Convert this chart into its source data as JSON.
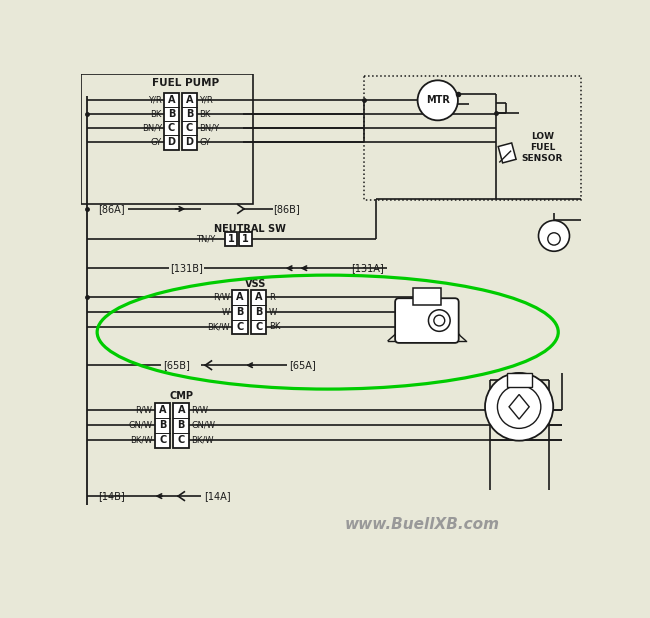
{
  "bg_color": "#e8e8d8",
  "line_color": "#1a1a1a",
  "green_color": "#00cc00",
  "title_text": "www.BuellXB.com",
  "title_color": "#999999",
  "title_fontsize": 11,
  "fig_width": 6.5,
  "fig_height": 6.18,
  "dpi": 100,
  "fuel_pump_wires_left": [
    "Y/R",
    "BK",
    "BN/Y",
    "GY"
  ],
  "fuel_pump_wires_right": [
    "Y/R",
    "BK",
    "BN/Y",
    "GY"
  ],
  "vss_wires_left": [
    "R/W",
    "W",
    "BK/W"
  ],
  "vss_wires_right": [
    "R",
    "W",
    "BK"
  ],
  "cmp_wires_left": [
    "R/W",
    "GN/W",
    "BK/W"
  ],
  "cmp_wires_right": [
    "R/W",
    "GN/W",
    "BK/W"
  ]
}
